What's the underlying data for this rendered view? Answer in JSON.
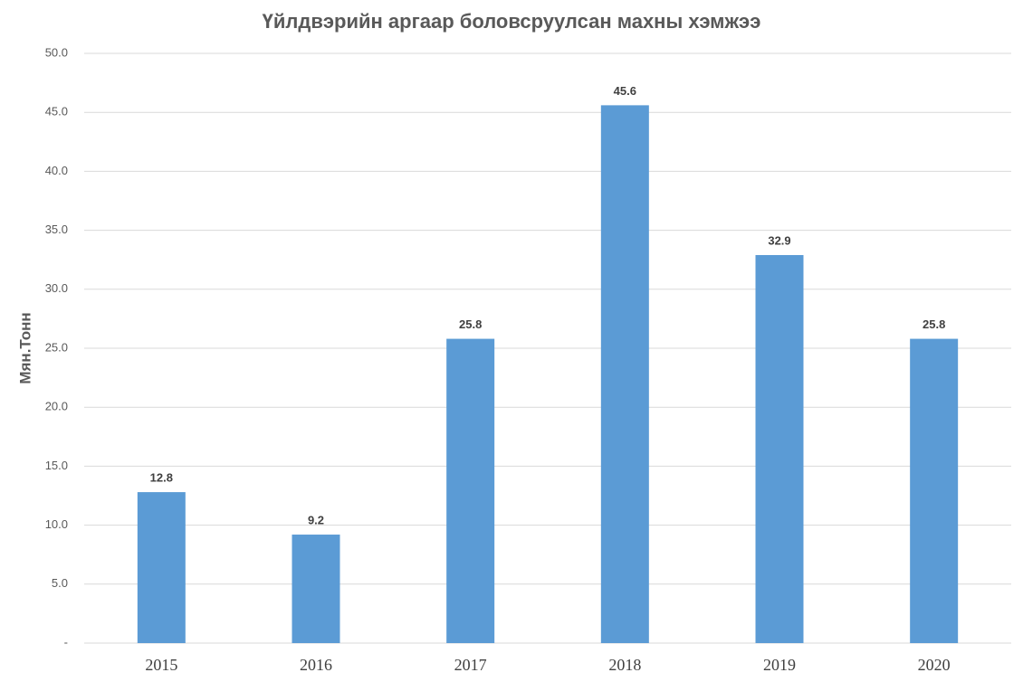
{
  "chart_data": {
    "type": "bar",
    "title": "Үйлдвэрийн аргаар боловсруулсан махны хэмжээ",
    "y_label": "Мян.Тонн",
    "categories": [
      "2015",
      "2016",
      "2017",
      "2018",
      "2019",
      "2020"
    ],
    "values": [
      12.8,
      9.2,
      25.8,
      45.6,
      32.9,
      25.8
    ],
    "color": "#5b9bd5",
    "ylim": [
      0,
      50
    ],
    "yticks": [
      {
        "value": 0,
        "label": "-"
      },
      {
        "value": 5,
        "label": "5.0"
      },
      {
        "value": 10,
        "label": "10.0"
      },
      {
        "value": 15,
        "label": "15.0"
      },
      {
        "value": 20,
        "label": "20.0"
      },
      {
        "value": 25,
        "label": "25.0"
      },
      {
        "value": 30,
        "label": "30.0"
      },
      {
        "value": 35,
        "label": "35.0"
      },
      {
        "value": 40,
        "label": "40.0"
      },
      {
        "value": 45,
        "label": "45.0"
      },
      {
        "value": 50,
        "label": "50.0"
      }
    ],
    "grid": true
  }
}
